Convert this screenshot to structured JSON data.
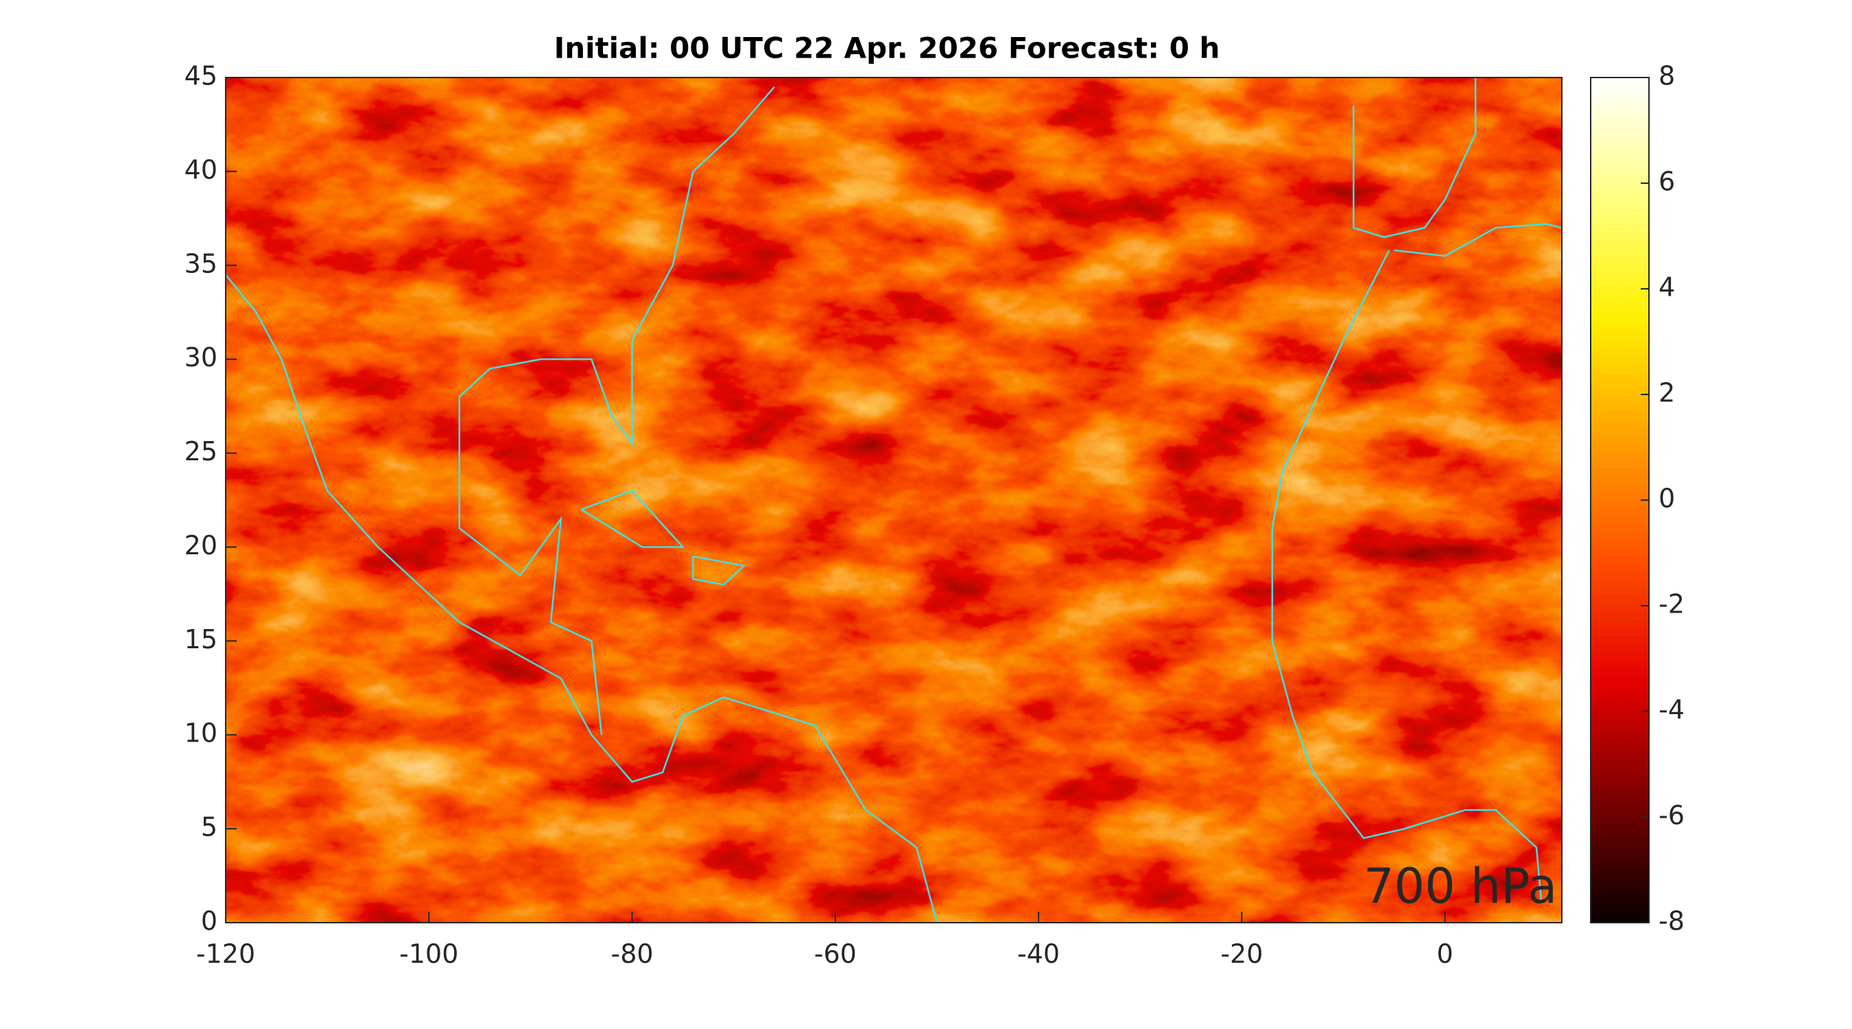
{
  "chart_data": {
    "type": "heatmap",
    "title": "Initial: 00 UTC 22 Apr. 2026 Forecast: 0 h",
    "annotation": "700 hPa",
    "annotation_color": "#00e600",
    "coastline_color": "#40e0e0",
    "colormap": "hot",
    "xlim": [
      -120,
      11.5
    ],
    "xticks": [
      -120,
      -100,
      -80,
      -60,
      -40,
      -20,
      0
    ],
    "ylim": [
      0,
      45
    ],
    "yticks": [
      0,
      5,
      10,
      15,
      20,
      25,
      30,
      35,
      40,
      45
    ],
    "clim": [
      -8,
      8
    ],
    "cticks": [
      -8,
      -6,
      -4,
      -2,
      0,
      2,
      4,
      6,
      8
    ]
  }
}
